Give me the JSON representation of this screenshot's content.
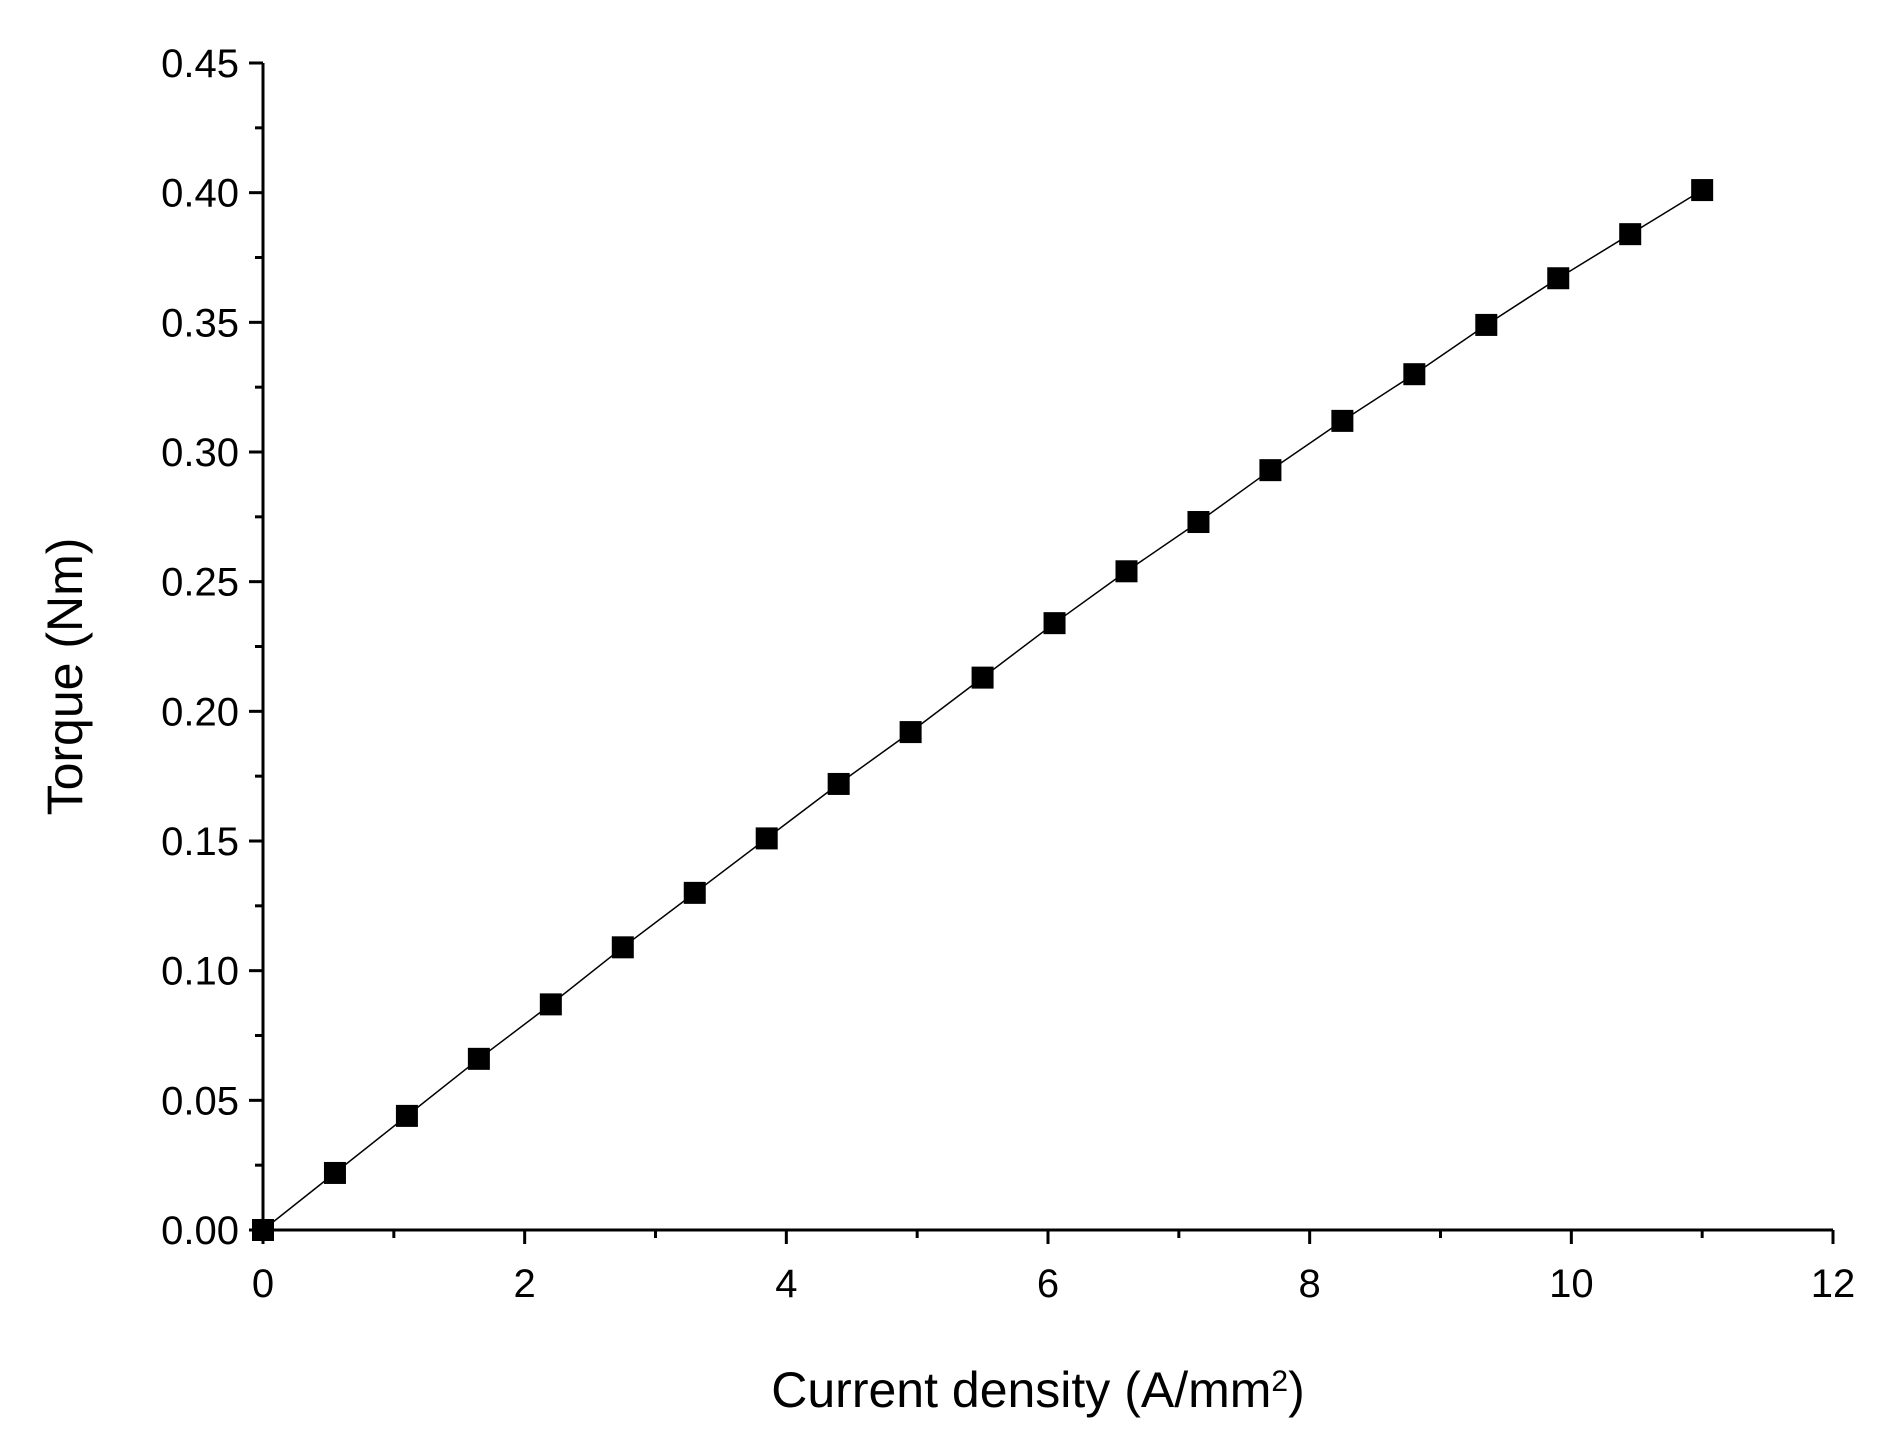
{
  "chart_data": {
    "type": "scatter",
    "title": "",
    "xlabel": "Current density (A/mm",
    "xlabel_superscript": "2",
    "xlabel_suffix": ")",
    "ylabel": "Torque (Nm)",
    "xlim": [
      0,
      12
    ],
    "ylim": [
      0,
      0.45
    ],
    "x_ticks": [
      "0",
      "2",
      "4",
      "6",
      "8",
      "10",
      "12"
    ],
    "y_ticks": [
      "0.00",
      "0.05",
      "0.10",
      "0.15",
      "0.20",
      "0.25",
      "0.30",
      "0.35",
      "0.40",
      "0.45"
    ],
    "x_tick_values": [
      0,
      2,
      4,
      6,
      8,
      10,
      12
    ],
    "y_tick_values": [
      0,
      0.05,
      0.1,
      0.15,
      0.2,
      0.25,
      0.3,
      0.35,
      0.4,
      0.45
    ],
    "grid": false,
    "legend": "none",
    "marker": "square",
    "connect_points": true,
    "colors": {
      "marker": "#000000",
      "line": "#000000",
      "axis": "#000000",
      "background": "#ffffff"
    },
    "series": [
      {
        "x": [
          0,
          0.55,
          1.1,
          1.65,
          2.2,
          2.75,
          3.3,
          3.85,
          4.4,
          4.95,
          5.5,
          6.05,
          6.6,
          7.15,
          7.7,
          8.25,
          8.8,
          9.35,
          9.9,
          10.45,
          11.0
        ],
        "y": [
          0.0,
          0.022,
          0.044,
          0.066,
          0.087,
          0.109,
          0.13,
          0.151,
          0.172,
          0.192,
          0.213,
          0.234,
          0.254,
          0.273,
          0.293,
          0.312,
          0.33,
          0.349,
          0.367,
          0.384,
          0.401
        ]
      }
    ]
  }
}
